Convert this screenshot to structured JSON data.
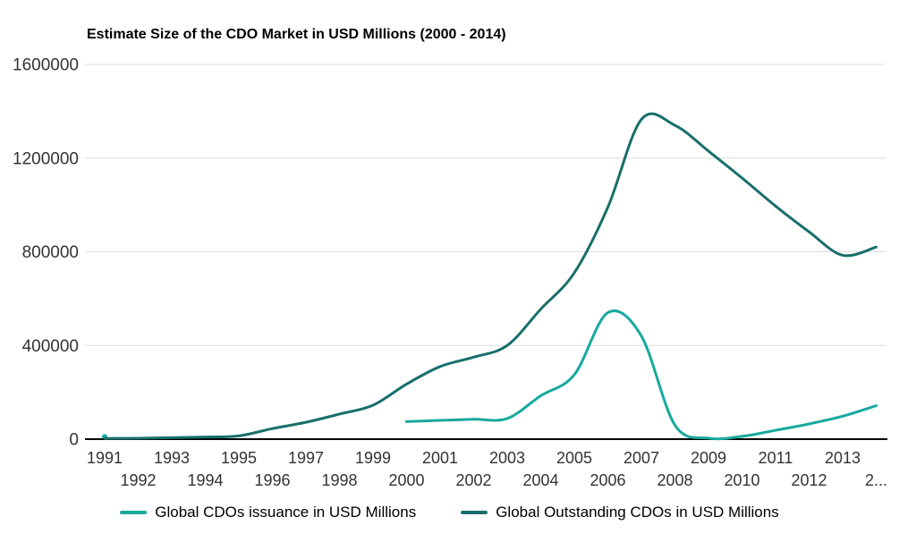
{
  "title": "Estimate Size of the CDO Market in USD Millions (2000 - 2014)",
  "colors": {
    "issuance_line": "#17A99D",
    "outstanding_line": "#186F6A",
    "gridline": "#DCDCDC",
    "axis_line": "#000000",
    "tick_text": "#333333",
    "title_text": "#000000",
    "background": "#FFFFFF"
  },
  "chart_data": {
    "type": "line",
    "title": "Estimate Size of the CDO Market in USD Millions (2000 - 2014)",
    "xlabel": "",
    "ylabel": "",
    "xlim": [
      1991,
      2014
    ],
    "ylim": [
      0,
      1600000
    ],
    "y_ticks": [
      0,
      400000,
      800000,
      1200000,
      1600000
    ],
    "grid": "horizontal",
    "legend_position": "bottom",
    "line_style": "smooth",
    "x_ticks": [
      {
        "year": 1991,
        "label": "1991",
        "row": 1
      },
      {
        "year": 1992,
        "label": "1992",
        "row": 2
      },
      {
        "year": 1993,
        "label": "1993",
        "row": 1
      },
      {
        "year": 1994,
        "label": "1994",
        "row": 2
      },
      {
        "year": 1995,
        "label": "1995",
        "row": 1
      },
      {
        "year": 1996,
        "label": "1996",
        "row": 2
      },
      {
        "year": 1997,
        "label": "1997",
        "row": 1
      },
      {
        "year": 1998,
        "label": "1998",
        "row": 2
      },
      {
        "year": 1999,
        "label": "1999",
        "row": 1
      },
      {
        "year": 2000,
        "label": "2000",
        "row": 2
      },
      {
        "year": 2001,
        "label": "2001",
        "row": 1
      },
      {
        "year": 2002,
        "label": "2002",
        "row": 2
      },
      {
        "year": 2003,
        "label": "2003",
        "row": 1
      },
      {
        "year": 2004,
        "label": "2004",
        "row": 2
      },
      {
        "year": 2005,
        "label": "2005",
        "row": 1
      },
      {
        "year": 2006,
        "label": "2006",
        "row": 2
      },
      {
        "year": 2007,
        "label": "2007",
        "row": 1
      },
      {
        "year": 2008,
        "label": "2008",
        "row": 2
      },
      {
        "year": 2009,
        "label": "2009",
        "row": 1
      },
      {
        "year": 2010,
        "label": "2010",
        "row": 2
      },
      {
        "year": 2011,
        "label": "2011",
        "row": 1
      },
      {
        "year": 2012,
        "label": "2012",
        "row": 2
      },
      {
        "year": 2013,
        "label": "2013",
        "row": 1
      },
      {
        "year": 2014,
        "label": "2...",
        "row": 2
      }
    ],
    "series": [
      {
        "name": "Global CDOs issuance in USD Millions",
        "color": "#17A99D",
        "points": [
          [
            1991,
            10000
          ],
          [
            2000,
            75000
          ],
          [
            2001,
            80000
          ],
          [
            2002,
            85000
          ],
          [
            2003,
            88000
          ],
          [
            2004,
            185000
          ],
          [
            2005,
            275000
          ],
          [
            2006,
            540000
          ],
          [
            2007,
            440000
          ],
          [
            2008,
            60000
          ],
          [
            2009,
            4000
          ],
          [
            2010,
            12000
          ],
          [
            2011,
            38000
          ],
          [
            2012,
            65000
          ],
          [
            2013,
            98000
          ],
          [
            2014,
            143000
          ]
        ]
      },
      {
        "name": "Global Outstanding CDOs in USD Millions",
        "color": "#186F6A",
        "points": [
          [
            1991,
            3000
          ],
          [
            1992,
            4000
          ],
          [
            1993,
            6000
          ],
          [
            1994,
            9000
          ],
          [
            1995,
            14000
          ],
          [
            1996,
            45000
          ],
          [
            1997,
            72000
          ],
          [
            1998,
            107000
          ],
          [
            1999,
            145000
          ],
          [
            2000,
            235000
          ],
          [
            2001,
            310000
          ],
          [
            2002,
            350000
          ],
          [
            2003,
            400000
          ],
          [
            2004,
            555000
          ],
          [
            2005,
            710000
          ],
          [
            2006,
            990000
          ],
          [
            2007,
            1365000
          ],
          [
            2008,
            1340000
          ],
          [
            2009,
            1230000
          ],
          [
            2010,
            1115000
          ],
          [
            2011,
            995000
          ],
          [
            2012,
            885000
          ],
          [
            2013,
            785000
          ],
          [
            2014,
            820000
          ]
        ]
      }
    ]
  },
  "legend": {
    "items": [
      {
        "label": "Global CDOs issuance in USD Millions"
      },
      {
        "label": "Global Outstanding CDOs in USD Millions"
      }
    ]
  }
}
